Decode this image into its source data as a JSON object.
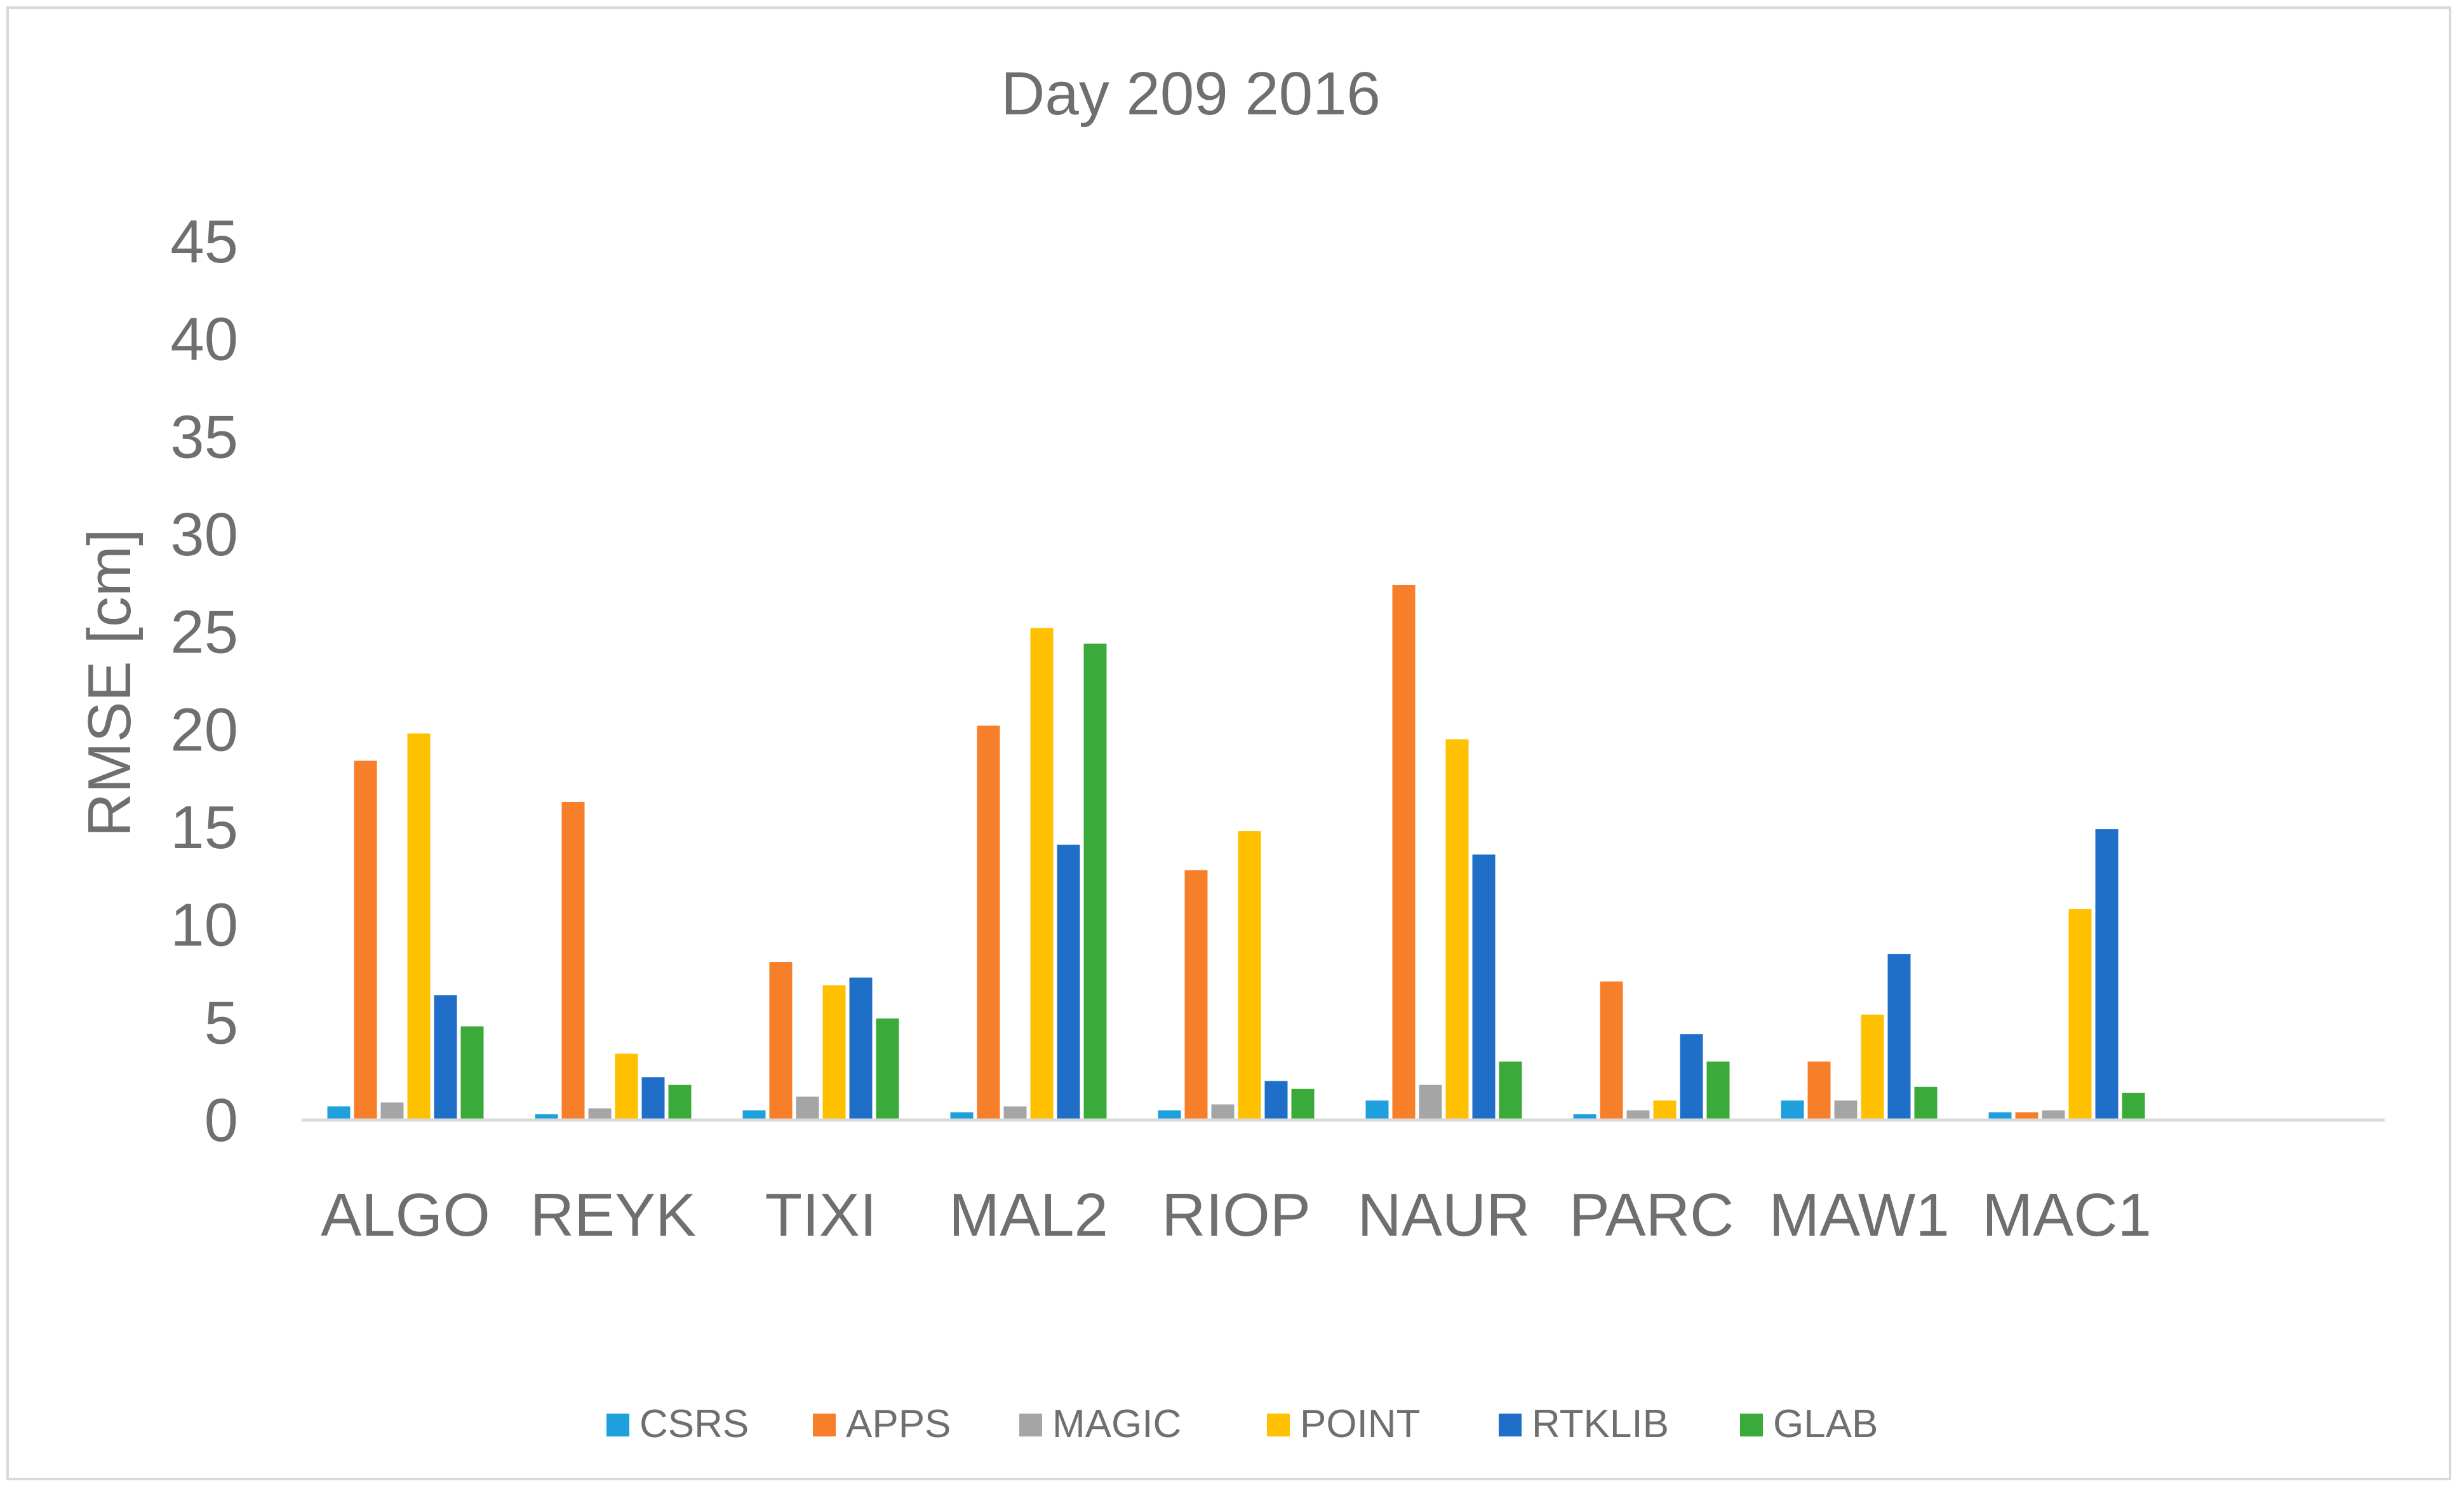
{
  "chart_data": {
    "type": "bar",
    "title": "Day 209 2016",
    "ylabel": "RMSE [cm]",
    "xlabel": "",
    "ylim": [
      0,
      45
    ],
    "yticks": [
      0,
      5,
      10,
      15,
      20,
      25,
      30,
      35,
      40,
      45
    ],
    "grid": false,
    "legend_position": "bottom",
    "categories": [
      "ALGO",
      "REYK",
      "TIXI",
      "MAL2",
      "RIOP",
      "NAUR",
      "PARC",
      "MAW1",
      "MAC1"
    ],
    "series": [
      {
        "name": "CSRS",
        "color": "#1ea0dc",
        "values": [
          0.7,
          0.3,
          0.5,
          0.4,
          0.5,
          1.0,
          0.3,
          1.0,
          0.4
        ]
      },
      {
        "name": "APPS",
        "color": "#f77f2a",
        "values": [
          18.4,
          16.3,
          8.1,
          20.2,
          12.8,
          27.4,
          7.1,
          3.0,
          0.4
        ]
      },
      {
        "name": "MAGIC",
        "color": "#a5a5a5",
        "values": [
          0.9,
          0.6,
          1.2,
          0.7,
          0.8,
          1.8,
          0.5,
          1.0,
          0.5
        ]
      },
      {
        "name": "POINT",
        "color": "#ffc000",
        "values": [
          19.8,
          3.4,
          6.9,
          25.2,
          14.8,
          19.5,
          1.0,
          5.4,
          10.8
        ]
      },
      {
        "name": "RTKLIB",
        "color": "#1f6fc9",
        "values": [
          6.4,
          2.2,
          7.3,
          14.1,
          2.0,
          13.6,
          4.4,
          8.5,
          14.9
        ]
      },
      {
        "name": "GLAB",
        "color": "#3aab3a",
        "values": [
          4.8,
          1.8,
          5.2,
          24.4,
          1.6,
          3.0,
          3.0,
          1.7,
          1.4
        ]
      }
    ]
  }
}
